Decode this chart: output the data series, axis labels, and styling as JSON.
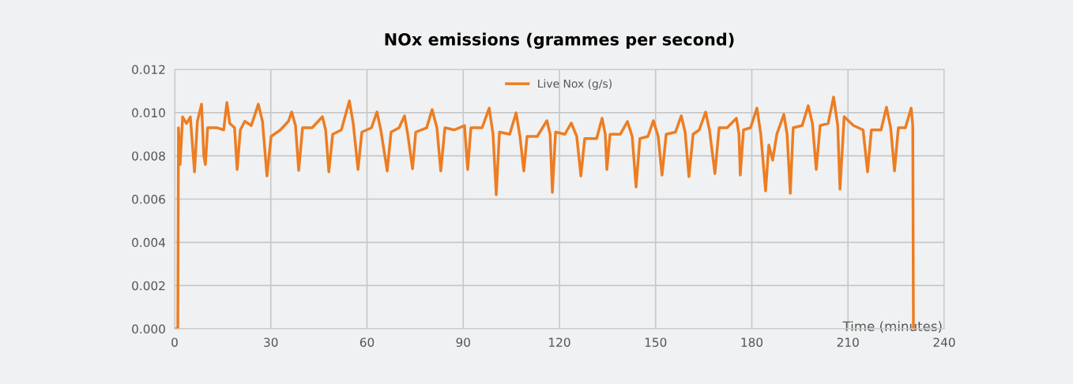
{
  "chart_data": {
    "type": "line",
    "title": "NOx emissions (grammes per second)",
    "xlabel": "Time (minutes)",
    "x": [
      0,
      1.0,
      1.2,
      1.7,
      2.5,
      3.7,
      4.9,
      6.2,
      7.1,
      8.4,
      9.1,
      9.6,
      10.3,
      13.3,
      15.3,
      16.3,
      17.2,
      18.7,
      19.5,
      20.5,
      21.9,
      23.9,
      26.1,
      27.4,
      28.8,
      30.1,
      33.0,
      35.5,
      36.5,
      37.7,
      38.7,
      39.9,
      42.9,
      46.1,
      47.1,
      48.1,
      49.3,
      52.0,
      54.5,
      55.7,
      57.2,
      58.4,
      61.4,
      63.1,
      64.3,
      66.3,
      67.5,
      70.0,
      71.7,
      72.7,
      74.2,
      75.2,
      78.6,
      80.3,
      81.8,
      83.0,
      84.3,
      87.2,
      90.4,
      91.4,
      92.4,
      95.9,
      98.1,
      99.3,
      100.3,
      101.3,
      104.5,
      106.5,
      107.7,
      108.9,
      109.9,
      113.1,
      116.1,
      117.1,
      117.8,
      118.8,
      121.7,
      123.7,
      125.4,
      126.7,
      127.9,
      131.6,
      133.3,
      134.3,
      134.8,
      135.8,
      139.0,
      141.2,
      142.7,
      143.9,
      145.1,
      147.6,
      149.3,
      150.8,
      152.0,
      153.3,
      156.2,
      158.0,
      159.2,
      160.4,
      161.7,
      163.6,
      165.6,
      166.8,
      168.5,
      169.8,
      172.3,
      175.2,
      176.0,
      176.4,
      177.4,
      179.6,
      181.6,
      182.8,
      184.3,
      185.3,
      186.5,
      187.8,
      190.0,
      191.0,
      192.0,
      192.9,
      195.7,
      197.6,
      198.9,
      200.1,
      201.3,
      203.8,
      205.5,
      206.8,
      207.5,
      208.8,
      211.7,
      214.7,
      216.1,
      217.3,
      220.3,
      222.0,
      223.3,
      224.5,
      225.7,
      227.9,
      229.7,
      230.2,
      230.4
    ],
    "series": [
      {
        "name": "Live Nox (g/s)",
        "color": "#ed7d22",
        "values": [
          0,
          0,
          0.0093,
          0.0076,
          0.0098,
          0.0095,
          0.0098,
          0.00726,
          0.0096,
          0.01039,
          0.008,
          0.0076,
          0.0093,
          0.0093,
          0.0092,
          0.01047,
          0.0095,
          0.0093,
          0.00737,
          0.0092,
          0.0096,
          0.0094,
          0.01039,
          0.0096,
          0.00707,
          0.0089,
          0.0092,
          0.0096,
          0.01003,
          0.0094,
          0.00733,
          0.0093,
          0.0093,
          0.00981,
          0.0092,
          0.00726,
          0.009,
          0.0092,
          0.01054,
          0.0095,
          0.00737,
          0.0091,
          0.0093,
          0.01003,
          0.0092,
          0.0073,
          0.0091,
          0.0093,
          0.00985,
          0.009,
          0.0074,
          0.0091,
          0.0093,
          0.01014,
          0.0093,
          0.0073,
          0.0093,
          0.0092,
          0.0094,
          0.00737,
          0.0093,
          0.0093,
          0.01021,
          0.009,
          0.0062,
          0.0091,
          0.009,
          0.00999,
          0.0089,
          0.0073,
          0.0089,
          0.0089,
          0.00963,
          0.009,
          0.00631,
          0.0091,
          0.009,
          0.00952,
          0.0089,
          0.00707,
          0.0088,
          0.0088,
          0.00974,
          0.009,
          0.00737,
          0.009,
          0.009,
          0.00959,
          0.0089,
          0.00656,
          0.0088,
          0.0089,
          0.00963,
          0.0089,
          0.00711,
          0.009,
          0.0091,
          0.00985,
          0.0091,
          0.00704,
          0.009,
          0.0092,
          0.01003,
          0.0092,
          0.00718,
          0.0093,
          0.0093,
          0.00974,
          0.009,
          0.00711,
          0.0092,
          0.0093,
          0.01021,
          0.009,
          0.00638,
          0.0085,
          0.0078,
          0.009,
          0.00992,
          0.009,
          0.00627,
          0.0093,
          0.0094,
          0.01032,
          0.0095,
          0.00737,
          0.0094,
          0.0095,
          0.01072,
          0.0094,
          0.00646,
          0.00981,
          0.0094,
          0.0092,
          0.00726,
          0.0092,
          0.0092,
          0.01025,
          0.0093,
          0.0073,
          0.0093,
          0.0093,
          0.01021,
          0.0094,
          0
        ]
      }
    ],
    "xlim": [
      0,
      240
    ],
    "xticks": [
      0,
      30,
      60,
      90,
      120,
      150,
      180,
      210,
      240
    ],
    "ylim": [
      0,
      0.012
    ],
    "yticks": [
      {
        "value": 0,
        "label": "0.000"
      },
      {
        "value": 0.002,
        "label": "0.002"
      },
      {
        "value": 0.004,
        "label": "0.004"
      },
      {
        "value": 0.006,
        "label": "0.006"
      },
      {
        "value": 0.008,
        "label": "0.008"
      },
      {
        "value": 0.01,
        "label": "0.010"
      },
      {
        "value": 0.012,
        "label": "0.012"
      }
    ],
    "grid": true,
    "legend": "top",
    "marker": "none",
    "line_style": "solid"
  }
}
